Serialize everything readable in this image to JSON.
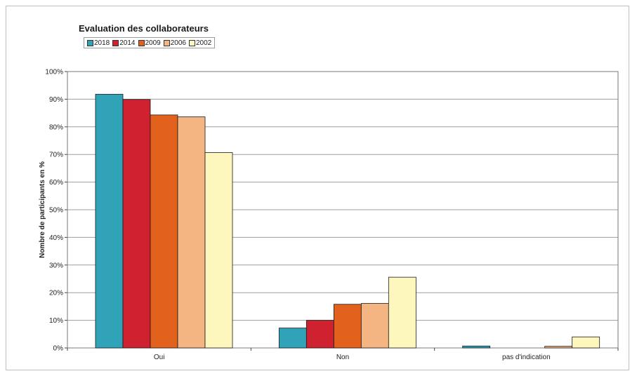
{
  "chart_data": {
    "type": "bar",
    "title": "Evaluation des collaborateurs",
    "ylabel": "Nombre de participants en %",
    "xlabel": "",
    "categories": [
      "Oui",
      "Non",
      "pas d'indication"
    ],
    "ylim": [
      0,
      100
    ],
    "yticks": [
      "0%",
      "10%",
      "20%",
      "30%",
      "40%",
      "50%",
      "60%",
      "70%",
      "80%",
      "90%",
      "100%"
    ],
    "grid": true,
    "legend_position": "top-left",
    "series": [
      {
        "name": "2018",
        "color": "#31a3b8",
        "values": [
          91.8,
          7.2,
          0.7
        ]
      },
      {
        "name": "2014",
        "color": "#cf2130",
        "values": [
          89.9,
          10.0,
          0.0
        ]
      },
      {
        "name": "2009",
        "color": "#e2611d",
        "values": [
          84.3,
          15.8,
          0.0
        ]
      },
      {
        "name": "2006",
        "color": "#f4b583",
        "values": [
          83.6,
          16.1,
          0.6
        ]
      },
      {
        "name": "2002",
        "color": "#fdf7bd",
        "values": [
          70.7,
          25.6,
          4.0
        ]
      }
    ]
  }
}
